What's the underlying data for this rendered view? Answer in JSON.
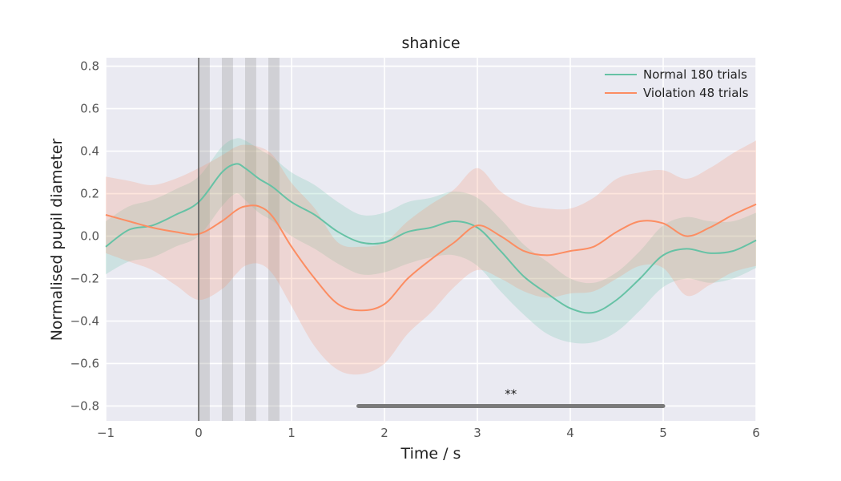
{
  "chart_data": {
    "type": "line",
    "title": "shanice",
    "xlabel": "Time / s",
    "ylabel": "Normalised pupil diameter",
    "xlim": [
      -1,
      6
    ],
    "ylim": [
      -0.87,
      0.84
    ],
    "xticks": [
      -1,
      0,
      1,
      2,
      3,
      4,
      5,
      6
    ],
    "xtick_labels": [
      "−1",
      "0",
      "1",
      "2",
      "3",
      "4",
      "5",
      "6"
    ],
    "yticks": [
      -0.8,
      -0.6,
      -0.4,
      -0.2,
      0.0,
      0.2,
      0.4,
      0.6,
      0.8
    ],
    "ytick_labels": [
      "−0.8",
      "−0.6",
      "−0.4",
      "−0.2",
      "0.0",
      "0.2",
      "0.4",
      "0.6",
      "0.8"
    ],
    "grid": true,
    "legend_position": "top-right",
    "event_line_x": 0,
    "shaded_intervals": [
      [
        0,
        0.12
      ],
      [
        0.25,
        0.37
      ],
      [
        0.5,
        0.62
      ],
      [
        0.75,
        0.87
      ]
    ],
    "x": [
      -1,
      -0.75,
      -0.5,
      -0.25,
      0,
      0.25,
      0.4,
      0.5,
      0.65,
      0.8,
      1,
      1.25,
      1.5,
      1.75,
      2,
      2.25,
      2.5,
      2.75,
      3,
      3.25,
      3.5,
      3.75,
      4,
      4.25,
      4.5,
      4.75,
      5,
      5.25,
      5.5,
      5.75,
      6
    ],
    "series": [
      {
        "name": "Normal 180 trials",
        "color": "#66c2a5",
        "values": [
          -0.05,
          0.03,
          0.05,
          0.1,
          0.16,
          0.3,
          0.34,
          0.32,
          0.27,
          0.23,
          0.16,
          0.1,
          0.02,
          -0.03,
          -0.03,
          0.02,
          0.04,
          0.07,
          0.04,
          -0.07,
          -0.19,
          -0.27,
          -0.34,
          -0.36,
          -0.3,
          -0.2,
          -0.09,
          -0.06,
          -0.08,
          -0.07,
          -0.02
        ],
        "lower": [
          -0.18,
          -0.12,
          -0.1,
          -0.05,
          0.0,
          0.14,
          0.2,
          0.17,
          0.11,
          0.07,
          0.0,
          -0.06,
          -0.13,
          -0.18,
          -0.17,
          -0.13,
          -0.1,
          -0.09,
          -0.14,
          -0.26,
          -0.37,
          -0.46,
          -0.5,
          -0.5,
          -0.45,
          -0.35,
          -0.24,
          -0.2,
          -0.22,
          -0.2,
          -0.15
        ],
        "upper": [
          0.07,
          0.14,
          0.17,
          0.22,
          0.28,
          0.42,
          0.46,
          0.45,
          0.41,
          0.37,
          0.3,
          0.24,
          0.16,
          0.1,
          0.11,
          0.16,
          0.18,
          0.21,
          0.18,
          0.08,
          -0.04,
          -0.12,
          -0.2,
          -0.22,
          -0.17,
          -0.07,
          0.05,
          0.09,
          0.07,
          0.07,
          0.11
        ]
      },
      {
        "name": "Violation 48 trials",
        "color": "#fc8d62",
        "values": [
          0.1,
          0.07,
          0.04,
          0.02,
          0.01,
          0.07,
          0.12,
          0.14,
          0.14,
          0.09,
          -0.05,
          -0.2,
          -0.32,
          -0.35,
          -0.32,
          -0.2,
          -0.11,
          -0.03,
          0.05,
          0.0,
          -0.07,
          -0.09,
          -0.07,
          -0.05,
          0.02,
          0.07,
          0.06,
          0.0,
          0.04,
          0.1,
          0.15
        ],
        "lower": [
          -0.08,
          -0.12,
          -0.16,
          -0.23,
          -0.3,
          -0.25,
          -0.18,
          -0.14,
          -0.13,
          -0.18,
          -0.33,
          -0.52,
          -0.63,
          -0.65,
          -0.6,
          -0.46,
          -0.36,
          -0.24,
          -0.16,
          -0.2,
          -0.26,
          -0.29,
          -0.27,
          -0.26,
          -0.2,
          -0.14,
          -0.15,
          -0.28,
          -0.23,
          -0.17,
          -0.14
        ],
        "upper": [
          0.28,
          0.26,
          0.24,
          0.27,
          0.32,
          0.38,
          0.42,
          0.43,
          0.42,
          0.38,
          0.25,
          0.13,
          -0.03,
          -0.05,
          -0.03,
          0.07,
          0.15,
          0.22,
          0.32,
          0.21,
          0.15,
          0.13,
          0.13,
          0.18,
          0.27,
          0.3,
          0.31,
          0.27,
          0.32,
          0.39,
          0.45
        ]
      }
    ],
    "significance": {
      "x_start": 1.72,
      "x_end": 5.0,
      "y": -0.8,
      "label": "**"
    }
  }
}
